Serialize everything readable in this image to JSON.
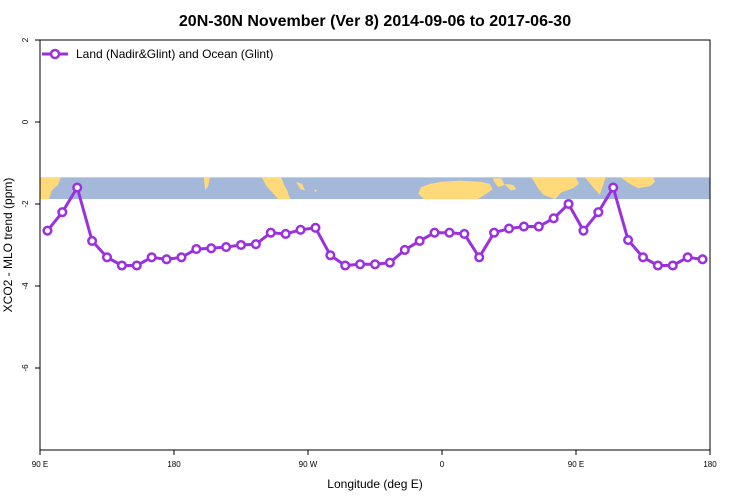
{
  "chart_data": {
    "type": "line",
    "title": "20N-30N November (Ver 8)   2014-09-06 to 2017-06-30",
    "xlabel": "Longitude (deg E)",
    "ylabel": "XCO2 - MLO trend (ppm)",
    "xlim": [
      90,
      540
    ],
    "ylim": [
      -8,
      2
    ],
    "yticks": [
      2,
      0,
      -2,
      -4,
      -6
    ],
    "yticklabels": [
      "2",
      "0",
      "-2",
      "-4",
      "-6"
    ],
    "xticks": [
      90,
      180,
      270,
      360,
      450,
      540
    ],
    "xticklabels": [
      "90 E",
      "180",
      "90 W",
      "0",
      "90 E",
      "180"
    ],
    "grid": false,
    "legend_position": "top-left",
    "series": [
      {
        "name": "Land (Nadir&Glint) and Ocean (Glint)",
        "color": "#9b30e0",
        "x": [
          95,
          105,
          115,
          125,
          135,
          145,
          155,
          165,
          175,
          185,
          195,
          205,
          215,
          225,
          235,
          245,
          255,
          265,
          275,
          285,
          295,
          305,
          315,
          325,
          335,
          345,
          355,
          365,
          375,
          385,
          395,
          405,
          415,
          425,
          435,
          445,
          455,
          465,
          475,
          485,
          495,
          505,
          515,
          525,
          535
        ],
        "values": [
          -2.65,
          -2.2,
          -1.6,
          -2.9,
          -3.3,
          -3.5,
          -3.5,
          -3.3,
          -3.35,
          -3.3,
          -3.1,
          -3.08,
          -3.05,
          -3.0,
          -2.98,
          -2.7,
          -2.73,
          -2.63,
          -2.58,
          -3.25,
          -3.5,
          -3.47,
          -3.47,
          -3.43,
          -3.12,
          -2.9,
          -2.7,
          -2.7,
          -2.73,
          -3.3,
          -2.7,
          -2.6,
          -2.55,
          -2.55,
          -2.35,
          -2.0,
          -2.65,
          -2.2,
          -1.6,
          -2.88,
          -3.3,
          -3.5,
          -3.5,
          -3.3,
          -3.35
        ]
      }
    ],
    "map_strip": {
      "description_note": "world map strip background",
      "ocean_color": "#a4b9d9",
      "land_color": "#ffd97a",
      "y_range": [
        -1.35,
        -1.88
      ]
    }
  }
}
